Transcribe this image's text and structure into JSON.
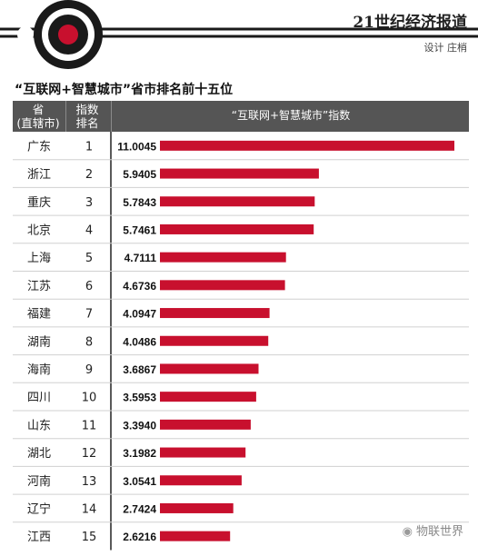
{
  "header": {
    "paper_name": "21世纪经济报道",
    "credit": "设计 庄梢"
  },
  "chart_data": {
    "type": "bar",
    "orientation": "horizontal",
    "title": "“互联网+智慧城市”省市排名前十五位",
    "column_headers": {
      "province_line1": "省",
      "province_line2": "(直辖市)",
      "rank_line1": "指数",
      "rank_line2": "排名",
      "index": "“互联网+智慧城市”指数"
    },
    "categories": [
      "广东",
      "浙江",
      "重庆",
      "北京",
      "上海",
      "江苏",
      "福建",
      "湖南",
      "海南",
      "四川",
      "山东",
      "湖北",
      "河南",
      "辽宁",
      "江西"
    ],
    "ranks": [
      "1",
      "2",
      "3",
      "4",
      "5",
      "6",
      "7",
      "8",
      "9",
      "10",
      "11",
      "12",
      "13",
      "14",
      "15"
    ],
    "value_labels": [
      "11.0045",
      "5.9405",
      "5.7843",
      "5.7461",
      "4.7111",
      "4.6736",
      "4.0947",
      "4.0486",
      "3.6867",
      "3.5953",
      "3.3940",
      "3.1982",
      "3.0541",
      "2.7424",
      "2.6216"
    ],
    "values": [
      11.0045,
      5.9405,
      5.7843,
      5.7461,
      4.7111,
      4.6736,
      4.0947,
      4.0486,
      3.6867,
      3.5953,
      3.394,
      3.1982,
      3.0541,
      2.7424,
      2.6216
    ],
    "bar_color": "#c8102e"
  },
  "watermark": {
    "text": "物联世界"
  },
  "colors": {
    "header_bg": "#555555",
    "bar": "#c8102e",
    "row_divider": "#d0d0d0"
  }
}
